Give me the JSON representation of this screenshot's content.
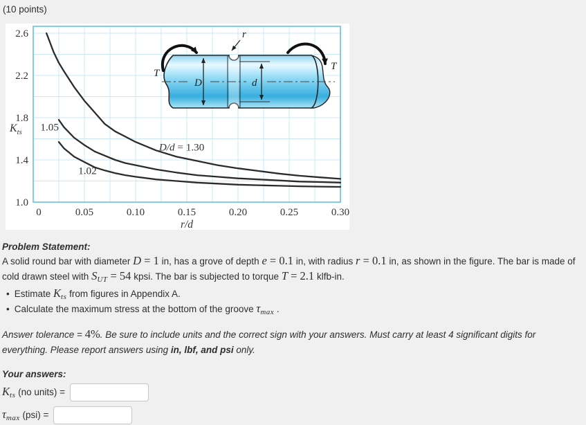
{
  "page": {
    "points_label": "(10 points)"
  },
  "chart_data": {
    "type": "line",
    "title": "",
    "xlabel": {
      "italic": "r/d"
    },
    "ylabel": {
      "var": "K",
      "sub": "ts"
    },
    "xlim": [
      0,
      0.3
    ],
    "ylim": [
      1.0,
      2.6
    ],
    "x_ticks": [
      0,
      0.05,
      0.1,
      0.15,
      0.2,
      0.25,
      0.3
    ],
    "x_tick_labels": [
      "0",
      "0.05",
      "0.10",
      "0.15",
      "0.20",
      "0.25",
      "0.30"
    ],
    "y_ticks": [
      1.0,
      1.4,
      1.8,
      2.2,
      2.6
    ],
    "y_tick_labels": [
      "1.0",
      "1.4",
      "1.8",
      "2.2",
      "2.6"
    ],
    "x_minor_step": 0.025,
    "y_minor_step": 0.2,
    "grid": true,
    "grid_color": "#c9e8f4",
    "frame_color": "#74c8e6",
    "curve_color": "#2b2b2b",
    "series": [
      {
        "name": "D/d = 1.30",
        "label": {
          "italic": "D/d",
          "rest": " = 1.30",
          "x": 0.145,
          "y": 1.52
        },
        "points": [
          [
            0.013,
            2.6
          ],
          [
            0.02,
            2.42
          ],
          [
            0.025,
            2.32
          ],
          [
            0.03,
            2.24
          ],
          [
            0.04,
            2.09
          ],
          [
            0.05,
            1.96
          ],
          [
            0.06,
            1.85
          ],
          [
            0.07,
            1.74
          ],
          [
            0.08,
            1.67
          ],
          [
            0.09,
            1.62
          ],
          [
            0.1,
            1.57
          ],
          [
            0.12,
            1.49
          ],
          [
            0.14,
            1.43
          ],
          [
            0.16,
            1.39
          ],
          [
            0.18,
            1.35
          ],
          [
            0.2,
            1.32
          ],
          [
            0.22,
            1.295
          ],
          [
            0.24,
            1.27
          ],
          [
            0.26,
            1.25
          ],
          [
            0.28,
            1.235
          ],
          [
            0.3,
            1.22
          ]
        ]
      },
      {
        "name": "1.05",
        "label": {
          "rest": "1.05",
          "x": 0.016,
          "y": 1.71
        },
        "points": [
          [
            0.025,
            1.78
          ],
          [
            0.03,
            1.71
          ],
          [
            0.04,
            1.61
          ],
          [
            0.05,
            1.54
          ],
          [
            0.06,
            1.48
          ],
          [
            0.07,
            1.44
          ],
          [
            0.08,
            1.4
          ],
          [
            0.09,
            1.37
          ],
          [
            0.1,
            1.35
          ],
          [
            0.12,
            1.31
          ],
          [
            0.14,
            1.28
          ],
          [
            0.16,
            1.255
          ],
          [
            0.18,
            1.24
          ],
          [
            0.2,
            1.225
          ],
          [
            0.22,
            1.215
          ],
          [
            0.24,
            1.205
          ],
          [
            0.26,
            1.195
          ],
          [
            0.28,
            1.19
          ],
          [
            0.3,
            1.185
          ]
        ]
      },
      {
        "name": "1.02",
        "label": {
          "rest": "1.02",
          "x": 0.053,
          "y": 1.3
        },
        "points": [
          [
            0.025,
            1.57
          ],
          [
            0.03,
            1.51
          ],
          [
            0.04,
            1.43
          ],
          [
            0.05,
            1.38
          ],
          [
            0.06,
            1.33
          ],
          [
            0.07,
            1.3
          ],
          [
            0.08,
            1.275
          ],
          [
            0.09,
            1.255
          ],
          [
            0.1,
            1.24
          ],
          [
            0.12,
            1.215
          ],
          [
            0.14,
            1.2
          ],
          [
            0.16,
            1.185
          ],
          [
            0.18,
            1.175
          ],
          [
            0.2,
            1.165
          ],
          [
            0.22,
            1.16
          ],
          [
            0.24,
            1.155
          ],
          [
            0.26,
            1.15
          ],
          [
            0.28,
            1.147
          ],
          [
            0.3,
            1.144
          ]
        ]
      }
    ]
  },
  "figure_inset": {
    "torque_left": "T",
    "torque_right": "T",
    "radius": "r",
    "outer_diameter": "D",
    "inner_diameter": "d"
  },
  "problem": {
    "title": "Problem Statement:",
    "statement": [
      {
        "text": "A solid round bar with diameter "
      },
      {
        "math": {
          "var": "D",
          "rest": " = 1"
        }
      },
      {
        "text": " in, has a grove of depth "
      },
      {
        "math": {
          "var": "e",
          "rest": " = 0.1"
        }
      },
      {
        "text": " in, with radius "
      },
      {
        "math": {
          "var": "r",
          "rest": " = 0.1"
        }
      },
      {
        "text": " in, as shown in the figure. The bar is made of cold drawn steel with "
      },
      {
        "math": {
          "var": "S",
          "sub": "UT",
          "rest": " = 54"
        }
      },
      {
        "text": " kpsi. The bar is subjected to torque "
      },
      {
        "math": {
          "var": "T",
          "rest": " = 2.1"
        }
      },
      {
        "text": " klfb-in."
      }
    ],
    "bullets": [
      [
        {
          "text": "Estimate "
        },
        {
          "math": {
            "var": "K",
            "sub": "ts"
          }
        },
        {
          "text": " from figures in Appendix A."
        }
      ],
      [
        {
          "text": "Calculate the maximum stress at the bottom of the groove "
        },
        {
          "math": {
            "var": "τ",
            "sub": "max"
          }
        },
        {
          "text": " ."
        }
      ]
    ],
    "tolerance": [
      {
        "text": "Answer tolerance = "
      },
      {
        "math": {
          "rest": "4%"
        }
      },
      {
        "text": ". Be sure to include units and the correct sign with your answers. Must carry at least 4 significant digits for everything. Please report answers using "
      },
      {
        "text": "in, lbf, and psi",
        "bold": true
      },
      {
        "text": " only."
      }
    ]
  },
  "answers": {
    "title": "Your answers:",
    "rows": [
      {
        "label": [
          {
            "math": {
              "var": "K",
              "sub": "ts"
            }
          },
          {
            "text": " (no units) ="
          }
        ],
        "value": ""
      },
      {
        "label": [
          {
            "math": {
              "var": "τ",
              "sub": "max"
            }
          },
          {
            "text": " (psi) ="
          }
        ],
        "value": ""
      }
    ]
  }
}
